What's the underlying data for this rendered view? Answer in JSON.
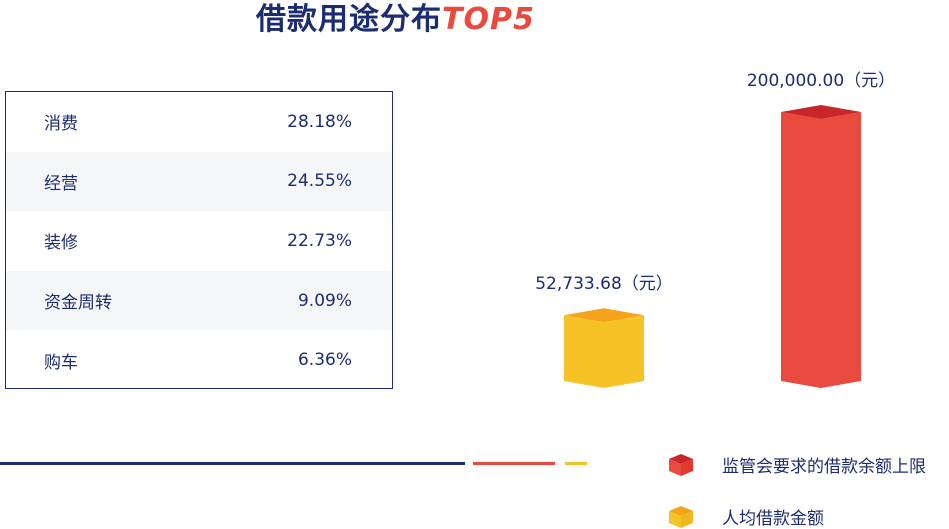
{
  "title": {
    "main": "借款用途分布",
    "accent": "TOP5"
  },
  "purposes": [
    {
      "name": "消费",
      "pct": "28.18%"
    },
    {
      "name": "经营",
      "pct": "24.55%"
    },
    {
      "name": "装修",
      "pct": "22.73%"
    },
    {
      "name": "资金周转",
      "pct": "9.09%"
    },
    {
      "name": "购车",
      "pct": "6.36%"
    }
  ],
  "chart_data": {
    "type": "bar",
    "categories": [
      "人均借款金额",
      "监管会要求的借款余额上限"
    ],
    "series": [
      {
        "name": "人均借款金额",
        "value": 52733.68,
        "label": "52,733.68（元）",
        "color": "#f5c325",
        "top_color": "#f7a21b"
      },
      {
        "name": "监管会要求的借款余额上限",
        "value": 200000.0,
        "label": "200,000.00（元）",
        "color": "#e84a3e",
        "top_color": "#c8262b"
      }
    ],
    "legend": "bottom-right"
  }
}
